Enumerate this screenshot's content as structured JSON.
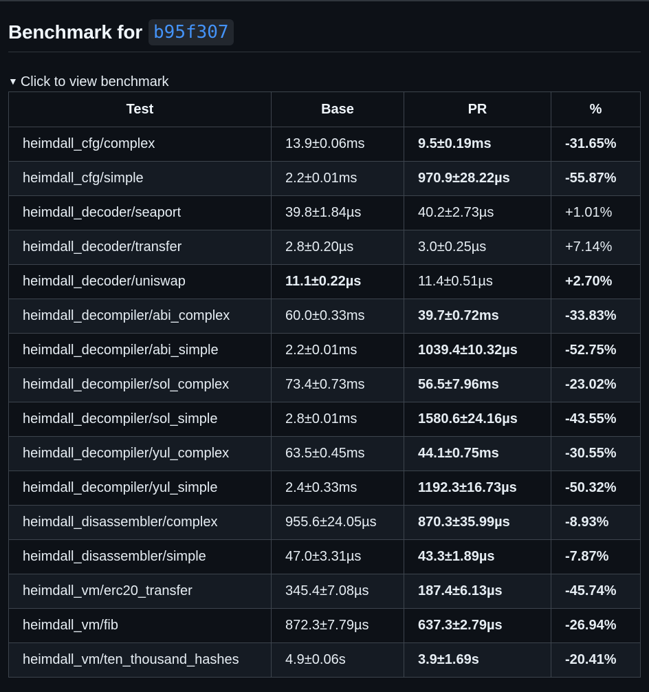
{
  "heading": {
    "prefix": "Benchmark for",
    "commit": "b95f307"
  },
  "details": {
    "summary": "Click to view benchmark",
    "toggle_glyph": "▼"
  },
  "table": {
    "headers": [
      "Test",
      "Base",
      "PR",
      "%"
    ],
    "rows": [
      {
        "test": "heimdall_cfg/complex",
        "base": "13.9±0.06ms",
        "pr": "9.5±0.19ms",
        "pct": "-31.65%",
        "bold": [
          "pr",
          "pct"
        ]
      },
      {
        "test": "heimdall_cfg/simple",
        "base": "2.2±0.01ms",
        "pr": "970.9±28.22µs",
        "pct": "-55.87%",
        "bold": [
          "pr",
          "pct"
        ]
      },
      {
        "test": "heimdall_decoder/seaport",
        "base": "39.8±1.84µs",
        "pr": "40.2±2.73µs",
        "pct": "+1.01%",
        "bold": []
      },
      {
        "test": "heimdall_decoder/transfer",
        "base": "2.8±0.20µs",
        "pr": "3.0±0.25µs",
        "pct": "+7.14%",
        "bold": []
      },
      {
        "test": "heimdall_decoder/uniswap",
        "base": "11.1±0.22µs",
        "pr": "11.4±0.51µs",
        "pct": "+2.70%",
        "bold": [
          "base",
          "pct"
        ]
      },
      {
        "test": "heimdall_decompiler/abi_complex",
        "base": "60.0±0.33ms",
        "pr": "39.7±0.72ms",
        "pct": "-33.83%",
        "bold": [
          "pr",
          "pct"
        ]
      },
      {
        "test": "heimdall_decompiler/abi_simple",
        "base": "2.2±0.01ms",
        "pr": "1039.4±10.32µs",
        "pct": "-52.75%",
        "bold": [
          "pr",
          "pct"
        ]
      },
      {
        "test": "heimdall_decompiler/sol_complex",
        "base": "73.4±0.73ms",
        "pr": "56.5±7.96ms",
        "pct": "-23.02%",
        "bold": [
          "pr",
          "pct"
        ]
      },
      {
        "test": "heimdall_decompiler/sol_simple",
        "base": "2.8±0.01ms",
        "pr": "1580.6±24.16µs",
        "pct": "-43.55%",
        "bold": [
          "pr",
          "pct"
        ]
      },
      {
        "test": "heimdall_decompiler/yul_complex",
        "base": "63.5±0.45ms",
        "pr": "44.1±0.75ms",
        "pct": "-30.55%",
        "bold": [
          "pr",
          "pct"
        ]
      },
      {
        "test": "heimdall_decompiler/yul_simple",
        "base": "2.4±0.33ms",
        "pr": "1192.3±16.73µs",
        "pct": "-50.32%",
        "bold": [
          "pr",
          "pct"
        ]
      },
      {
        "test": "heimdall_disassembler/complex",
        "base": "955.6±24.05µs",
        "pr": "870.3±35.99µs",
        "pct": "-8.93%",
        "bold": [
          "pr",
          "pct"
        ]
      },
      {
        "test": "heimdall_disassembler/simple",
        "base": "47.0±3.31µs",
        "pr": "43.3±1.89µs",
        "pct": "-7.87%",
        "bold": [
          "pr",
          "pct"
        ]
      },
      {
        "test": "heimdall_vm/erc20_transfer",
        "base": "345.4±7.08µs",
        "pr": "187.4±6.13µs",
        "pct": "-45.74%",
        "bold": [
          "pr",
          "pct"
        ]
      },
      {
        "test": "heimdall_vm/fib",
        "base": "872.3±7.79µs",
        "pr": "637.3±2.79µs",
        "pct": "-26.94%",
        "bold": [
          "pr",
          "pct"
        ]
      },
      {
        "test": "heimdall_vm/ten_thousand_hashes",
        "base": "4.9±0.06s",
        "pr": "3.9±1.69s",
        "pct": "-20.41%",
        "bold": [
          "pr",
          "pct"
        ]
      }
    ]
  },
  "colors": {
    "background": "#0d1117",
    "row_alt": "#151b23",
    "border": "#3d444d",
    "commit_text": "#4493f8",
    "commit_bg": "#22272e"
  }
}
